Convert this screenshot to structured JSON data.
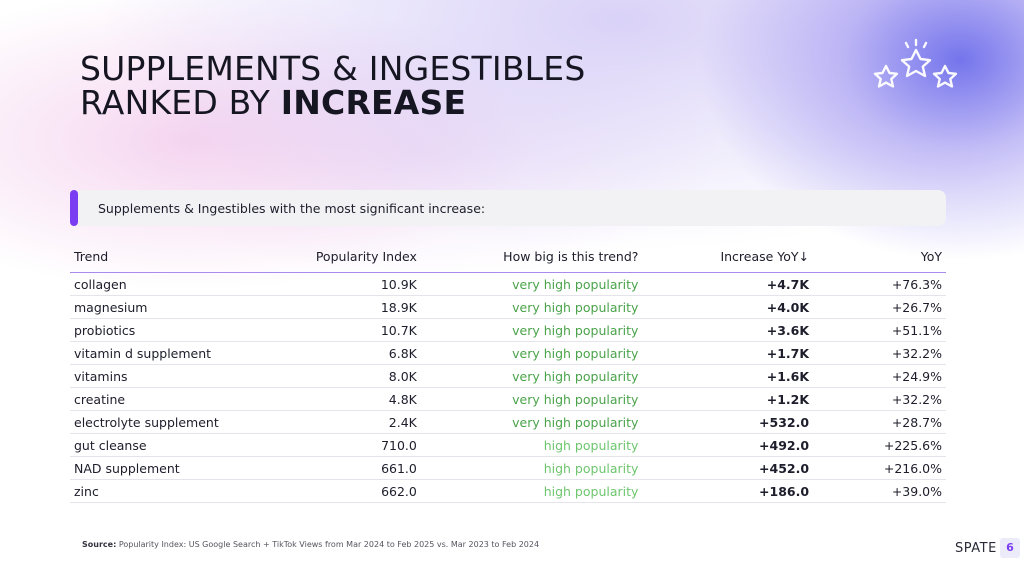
{
  "heading": {
    "line1": "SUPPLEMENTS & INGESTIBLES",
    "line2_prefix": "RANKED BY ",
    "line2_emphasis": "INCREASE"
  },
  "banner": {
    "text": "Supplements & Ingestibles with the most significant increase:",
    "accent_color": "#7b3df2"
  },
  "table": {
    "headers": {
      "trend": "Trend",
      "popularity": "Popularity Index",
      "how_big": "How big is this trend?",
      "increase": "Increase YoY↓",
      "yoy": "YoY"
    },
    "rows": [
      {
        "trend": "collagen",
        "popularity": "10.9K",
        "label": "very high popularity",
        "increase": "+4.7K",
        "yoy": "+76.3%"
      },
      {
        "trend": "magnesium",
        "popularity": "18.9K",
        "label": "very high popularity",
        "increase": "+4.0K",
        "yoy": "+26.7%"
      },
      {
        "trend": "probiotics",
        "popularity": "10.7K",
        "label": "very high popularity",
        "increase": "+3.6K",
        "yoy": "+51.1%"
      },
      {
        "trend": "vitamin d supplement",
        "popularity": "6.8K",
        "label": "very high popularity",
        "increase": "+1.7K",
        "yoy": "+32.2%"
      },
      {
        "trend": "vitamins",
        "popularity": "8.0K",
        "label": "very high popularity",
        "increase": "+1.6K",
        "yoy": "+24.9%"
      },
      {
        "trend": "creatine",
        "popularity": "4.8K",
        "label": "very high popularity",
        "increase": "+1.2K",
        "yoy": "+32.2%"
      },
      {
        "trend": "electrolyte supplement",
        "popularity": "2.4K",
        "label": "very high popularity",
        "increase": "+532.0",
        "yoy": "+28.7%"
      },
      {
        "trend": "gut cleanse",
        "popularity": "710.0",
        "label": "high popularity",
        "increase": "+492.0",
        "yoy": "+225.6%"
      },
      {
        "trend": "NAD supplement",
        "popularity": "661.0",
        "label": "high popularity",
        "increase": "+452.0",
        "yoy": "+216.0%"
      },
      {
        "trend": "zinc",
        "popularity": "662.0",
        "label": "high popularity",
        "increase": "+186.0",
        "yoy": "+39.0%"
      }
    ]
  },
  "colors": {
    "very_high_popularity": "#4aa34a",
    "high_popularity": "#6dc66d",
    "header_rule": "#a98bf0"
  },
  "icons": {
    "decoration": "stars-icon"
  },
  "footer": {
    "source_label": "Source:",
    "source_text": "Popularity Index: US Google Search + TikTok Views from Mar 2024 to Feb 2025 vs. Mar 2023 to Feb 2024",
    "brand": "SPATE",
    "page_number": "6"
  }
}
